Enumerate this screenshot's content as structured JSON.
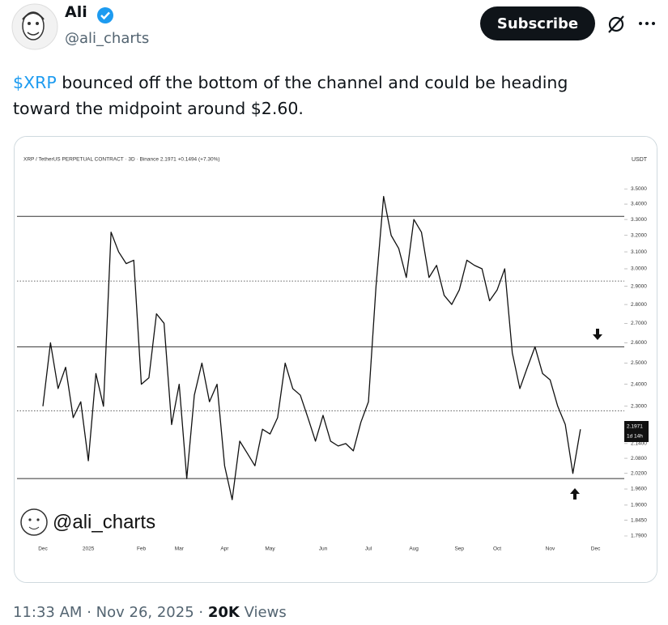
{
  "author": {
    "name": "Ali",
    "handle": "@ali_charts"
  },
  "subscribe_button": "Subscribe",
  "post": {
    "cashtag": "$XRP",
    "text": "bounced off the bottom of the channel and could be heading toward the midpoint around $2.60."
  },
  "footer": {
    "time": "11:33 AM",
    "separator": "·",
    "date": "Nov 26, 2025",
    "views": "20K",
    "views_label": "Views"
  },
  "chart_data": {
    "type": "line",
    "title": "XRP / TetherUS PERPETUAL CONTRACT · 3D · Binance  2.1971  +0.1494 (+7.30%)",
    "y_unit": "USDT",
    "watermark": "@ali_charts",
    "price_tag": {
      "value": "2.1971",
      "countdown": "1d 14h"
    },
    "log_scale": true,
    "ylim": [
      1.765,
      3.77
    ],
    "yticks": [
      {
        "value": 3.5,
        "label": "3.5000"
      },
      {
        "value": 3.4,
        "label": "3.4000"
      },
      {
        "value": 3.3,
        "label": "3.3000"
      },
      {
        "value": 3.2,
        "label": "3.2000"
      },
      {
        "value": 3.1,
        "label": "3.1000"
      },
      {
        "value": 3.0,
        "label": "3.0000"
      },
      {
        "value": 2.9,
        "label": "2.9000"
      },
      {
        "value": 2.8,
        "label": "2.8000"
      },
      {
        "value": 2.7,
        "label": "2.7000"
      },
      {
        "value": 2.6,
        "label": "2.6000"
      },
      {
        "value": 2.5,
        "label": "2.5000"
      },
      {
        "value": 2.4,
        "label": "2.4000"
      },
      {
        "value": 2.3,
        "label": "2.3000"
      },
      {
        "value": 2.14,
        "label": "2.1400"
      },
      {
        "value": 2.08,
        "label": "2.0800"
      },
      {
        "value": 2.02,
        "label": "2.0200"
      },
      {
        "value": 1.96,
        "label": "1.9600"
      },
      {
        "value": 1.9,
        "label": "1.9000"
      },
      {
        "value": 1.845,
        "label": "1.8450"
      },
      {
        "value": 1.79,
        "label": "1.7900"
      }
    ],
    "levels": [
      {
        "value": 3.32,
        "style": "solid"
      },
      {
        "value": 2.93,
        "style": "dotted"
      },
      {
        "value": 2.58,
        "style": "solid"
      },
      {
        "value": 2.28,
        "style": "dotted"
      },
      {
        "value": 2.0,
        "style": "solid"
      }
    ],
    "categories": [
      "Dec",
      null,
      null,
      null,
      null,
      null,
      "2025",
      null,
      null,
      null,
      null,
      null,
      null,
      "Feb",
      null,
      null,
      null,
      null,
      "Mar",
      null,
      null,
      null,
      null,
      null,
      "Apr",
      null,
      null,
      null,
      null,
      null,
      "May",
      null,
      null,
      null,
      null,
      null,
      null,
      "Jun",
      null,
      null,
      null,
      null,
      null,
      "Jul",
      null,
      null,
      null,
      null,
      null,
      "Aug",
      null,
      null,
      null,
      null,
      null,
      "Sep",
      null,
      null,
      null,
      null,
      "Oct",
      null,
      null,
      null,
      null,
      null,
      null,
      "Nov",
      null,
      null,
      null,
      null,
      null,
      "Dec"
    ],
    "series": [
      {
        "name": "XRP",
        "color": "#111111",
        "values": [
          2.3,
          2.6,
          2.38,
          2.48,
          2.25,
          2.32,
          2.07,
          2.45,
          2.3,
          3.22,
          3.1,
          3.03,
          3.05,
          2.4,
          2.43,
          2.75,
          2.7,
          2.22,
          2.4,
          2.0,
          2.35,
          2.5,
          2.32,
          2.4,
          2.05,
          1.92,
          2.15,
          2.1,
          2.05,
          2.2,
          2.18,
          2.25,
          2.5,
          2.38,
          2.35,
          2.25,
          2.15,
          2.26,
          2.15,
          2.13,
          2.14,
          2.11,
          2.23,
          2.32,
          2.9,
          3.45,
          3.2,
          3.12,
          2.95,
          3.3,
          3.22,
          2.95,
          3.02,
          2.85,
          2.8,
          2.88,
          3.05,
          3.02,
          3.0,
          2.82,
          2.88,
          3.0,
          2.55,
          2.38,
          2.48,
          2.58,
          2.45,
          2.42,
          2.3,
          2.22,
          2.02,
          2.2,
          null,
          null
        ]
      }
    ]
  }
}
